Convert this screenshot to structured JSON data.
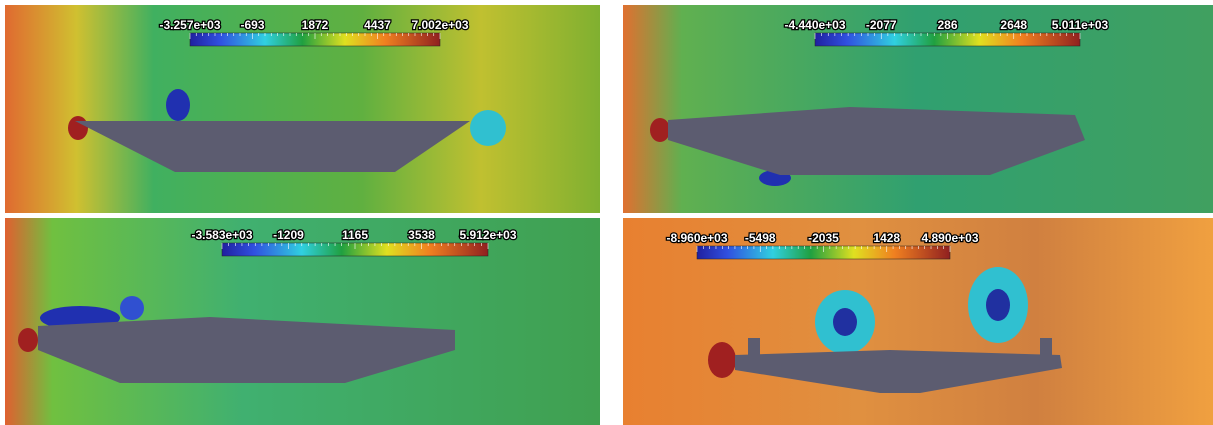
{
  "panels": [
    {
      "colorbar_labels": [
        "-3.257e+03",
        "-693",
        "1872",
        "4437",
        "7.002e+03"
      ]
    },
    {
      "colorbar_labels": [
        "-4.440e+03",
        "-2077",
        "286",
        "2648",
        "5.011e+03"
      ]
    },
    {
      "colorbar_labels": [
        "-3.583e+03",
        "-1209",
        "1165",
        "3538",
        "5.912e+03"
      ]
    },
    {
      "colorbar_labels": [
        "-8.960e+03",
        "-5498",
        "-2035",
        "1428",
        "4.890e+03"
      ]
    }
  ]
}
